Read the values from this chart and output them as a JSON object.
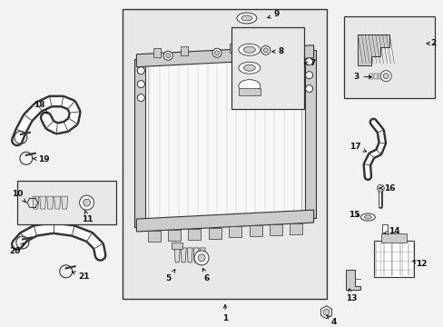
{
  "bg_color": "#f2f2f2",
  "line_color": "#333333",
  "light_gray": "#cccccc",
  "mid_gray": "#aaaaaa",
  "dark_gray": "#444444",
  "white": "#ffffff",
  "box_fill": "#e8e8e8"
}
